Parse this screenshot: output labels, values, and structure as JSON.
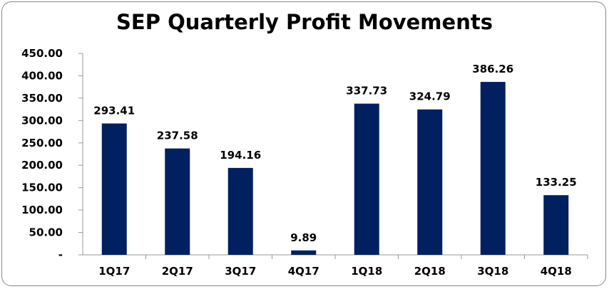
{
  "chart_data": {
    "type": "bar",
    "title": "SEP Quarterly Profit Movements",
    "categories": [
      "1Q17",
      "2Q17",
      "3Q17",
      "4Q17",
      "1Q18",
      "2Q18",
      "3Q18",
      "4Q18"
    ],
    "values": [
      293.41,
      237.58,
      194.16,
      9.89,
      337.73,
      324.79,
      386.26,
      133.25
    ],
    "data_labels": [
      "293.41",
      "237.58",
      "194.16",
      "9.89",
      "337.73",
      "324.79",
      "386.26",
      "133.25"
    ],
    "ylim": [
      0,
      450
    ],
    "yticks": [
      0,
      50,
      100,
      150,
      200,
      250,
      300,
      350,
      400,
      450
    ],
    "ytick_labels": [
      "-",
      "50.00",
      "100.00",
      "150.00",
      "200.00",
      "250.00",
      "300.00",
      "350.00",
      "400.00",
      "450.00"
    ],
    "xlabel": "",
    "ylabel": "",
    "grid": false,
    "legend": "none",
    "bar_color": "#002060"
  }
}
